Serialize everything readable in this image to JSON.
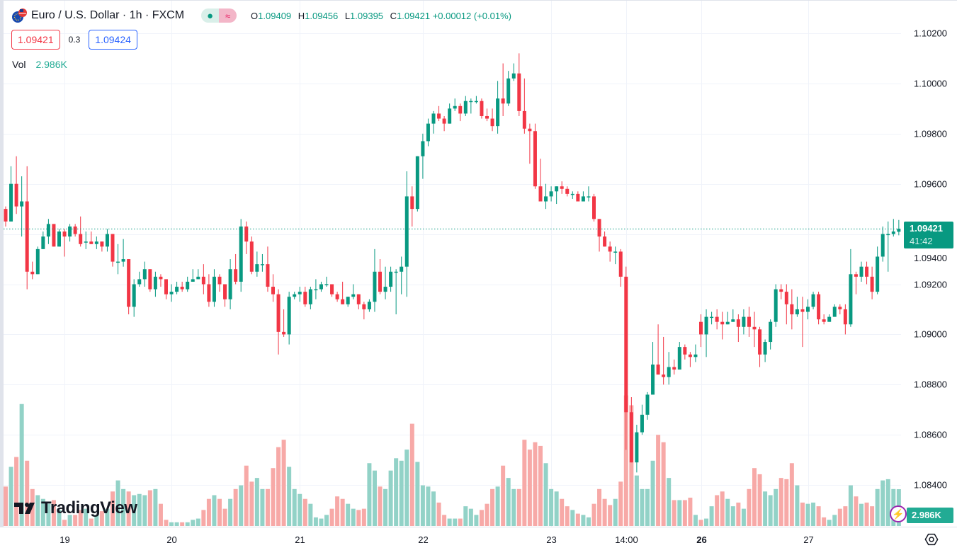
{
  "header": {
    "symbol_title": "Euro / U.S. Dollar · 1h · FXCM",
    "ohlc": {
      "o_label": "O",
      "o": "1.09409",
      "h_label": "H",
      "h": "1.09456",
      "l_label": "L",
      "l": "1.09395",
      "c_label": "C",
      "c": "1.09421",
      "change": "+0.00012 (+0.01%)"
    },
    "sell_price": "1.09421",
    "spread": "0.3",
    "buy_price": "1.09424",
    "vol_label": "Vol",
    "vol_value": "2.986K",
    "pill_dot": "●",
    "pill_wave": "≈"
  },
  "price_tag": {
    "price": "1.09421",
    "countdown": "41:42"
  },
  "volume_tag": "2.986K",
  "logo_text": "TradingView",
  "colors": {
    "up": "#089981",
    "down": "#f23645",
    "up_volume": "#92d2c7",
    "down_volume": "#f7a9a7",
    "grid": "#f0f3fa",
    "price_tag": "#089981",
    "volume_tag": "#22ab94"
  },
  "icons": {
    "flag": "eu-us-flag-icon",
    "bolt": "lightning-icon",
    "settings": "settings-hexagon-icon"
  },
  "chart_data": {
    "type": "candlestick",
    "title": "Euro / U.S. Dollar · 1h · FXCM",
    "ylim": [
      1.0836,
      1.1032
    ],
    "y_ticks": [
      "1.10200",
      "1.10000",
      "1.09800",
      "1.09600",
      "1.09400",
      "1.09200",
      "1.09000",
      "1.08800",
      "1.08600",
      "1.08400"
    ],
    "y_tick_values": [
      1.102,
      1.1,
      1.098,
      1.096,
      1.094,
      1.092,
      1.09,
      1.088,
      1.086,
      1.084
    ],
    "x_ticks": [
      {
        "label": "19",
        "candle_index": 11,
        "bold": false
      },
      {
        "label": "20",
        "candle_index": 31,
        "bold": false
      },
      {
        "label": "21",
        "candle_index": 55,
        "bold": false
      },
      {
        "label": "22",
        "candle_index": 78,
        "bold": false
      },
      {
        "label": "23",
        "candle_index": 102,
        "bold": false
      },
      {
        "label": "14:00",
        "candle_index": 116,
        "bold": false
      },
      {
        "label": "26",
        "candle_index": 130,
        "bold": true
      },
      {
        "label": "27",
        "candle_index": 150,
        "bold": false
      }
    ],
    "last_price": 1.09421,
    "volume_unit": "K",
    "candles_ohlc": [
      [
        1.095,
        1.0951,
        1.0943,
        1.0945
      ],
      [
        1.0945,
        1.0967,
        1.0945,
        1.096
      ],
      [
        1.096,
        1.0971,
        1.0948,
        1.0951
      ],
      [
        1.0951,
        1.0963,
        1.0939,
        1.0953
      ],
      [
        1.0953,
        1.0967,
        1.0918,
        1.0925
      ],
      [
        1.0925,
        1.0929,
        1.0922,
        1.0924
      ],
      [
        1.0924,
        1.0935,
        1.0924,
        1.0934
      ],
      [
        1.0934,
        1.0941,
        1.0934,
        1.0939
      ],
      [
        1.0939,
        1.0946,
        1.0936,
        1.0944
      ],
      [
        1.0944,
        1.0944,
        1.0935,
        1.0935
      ],
      [
        1.0935,
        1.0942,
        1.0935,
        1.0941
      ],
      [
        1.0941,
        1.0942,
        1.0931,
        1.0939
      ],
      [
        1.0939,
        1.0944,
        1.0937,
        1.0943
      ],
      [
        1.0943,
        1.0944,
        1.0939,
        1.094
      ],
      [
        1.094,
        1.0947,
        1.0935,
        1.0936
      ],
      [
        1.0937,
        1.0941,
        1.0934,
        1.0937
      ],
      [
        1.0937,
        1.0941,
        1.0936,
        1.0936
      ],
      [
        1.0936,
        1.0939,
        1.0934,
        1.0937
      ],
      [
        1.0937,
        1.0937,
        1.0933,
        1.0935
      ],
      [
        1.0935,
        1.0942,
        1.0933,
        1.094
      ],
      [
        1.094,
        1.094,
        1.0927,
        1.0929
      ],
      [
        1.0929,
        1.0936,
        1.0924,
        1.0929
      ],
      [
        1.0929,
        1.0938,
        1.0927,
        1.093
      ],
      [
        1.093,
        1.093,
        1.0908,
        1.0911
      ],
      [
        1.0911,
        1.0922,
        1.0907,
        1.092
      ],
      [
        1.092,
        1.0925,
        1.0919,
        1.0922
      ],
      [
        1.0922,
        1.0929,
        1.0919,
        1.0926
      ],
      [
        1.0926,
        1.0926,
        1.0917,
        1.0918
      ],
      [
        1.0918,
        1.0925,
        1.0915,
        1.0923
      ],
      [
        1.0923,
        1.0924,
        1.0919,
        1.0922
      ],
      [
        1.0922,
        1.0922,
        1.0914,
        1.0916
      ],
      [
        1.0916,
        1.092,
        1.0913,
        1.0917
      ],
      [
        1.0917,
        1.0921,
        1.0916,
        1.0919
      ],
      [
        1.0919,
        1.0921,
        1.0917,
        1.0918
      ],
      [
        1.0918,
        1.0923,
        1.0917,
        1.0921
      ],
      [
        1.0921,
        1.0926,
        1.0921,
        1.0922
      ],
      [
        1.0922,
        1.0926,
        1.0922,
        1.0923
      ],
      [
        1.0923,
        1.0928,
        1.0916,
        1.092
      ],
      [
        1.092,
        1.0924,
        1.0911,
        1.0913
      ],
      [
        1.0913,
        1.0926,
        1.0911,
        1.0923
      ],
      [
        1.0923,
        1.0924,
        1.0917,
        1.092
      ],
      [
        1.092,
        1.092,
        1.0911,
        1.0914
      ],
      [
        1.0914,
        1.093,
        1.091,
        1.0926
      ],
      [
        1.0926,
        1.0932,
        1.092,
        1.0921
      ],
      [
        1.0921,
        1.0946,
        1.0917,
        1.0943
      ],
      [
        1.0943,
        1.0945,
        1.0932,
        1.0937
      ],
      [
        1.0937,
        1.0939,
        1.0924,
        1.0925
      ],
      [
        1.0925,
        1.0933,
        1.0923,
        1.0928
      ],
      [
        1.0928,
        1.0932,
        1.0925,
        1.0928
      ],
      [
        1.0928,
        1.0935,
        1.0917,
        1.0919
      ],
      [
        1.0919,
        1.0924,
        1.0913,
        1.0916
      ],
      [
        1.0916,
        1.0918,
        1.0892,
        1.0901
      ],
      [
        1.0901,
        1.091,
        1.0899,
        1.09
      ],
      [
        1.09,
        1.0917,
        1.0896,
        1.0915
      ],
      [
        1.0915,
        1.0917,
        1.0914,
        1.0916
      ],
      [
        1.0916,
        1.0919,
        1.0913,
        1.0917
      ],
      [
        1.0917,
        1.0919,
        1.0911,
        1.0912
      ],
      [
        1.0912,
        1.0919,
        1.091,
        1.0918
      ],
      [
        1.0918,
        1.0922,
        1.0914,
        1.0918
      ],
      [
        1.0918,
        1.0921,
        1.0917,
        1.092
      ],
      [
        1.092,
        1.0923,
        1.0919,
        1.092
      ],
      [
        1.092,
        1.092,
        1.0915,
        1.0916
      ],
      [
        1.0916,
        1.0917,
        1.0913,
        1.0914
      ],
      [
        1.0914,
        1.0921,
        1.0912,
        1.0912
      ],
      [
        1.0912,
        1.0915,
        1.0911,
        1.0915
      ],
      [
        1.0915,
        1.092,
        1.0914,
        1.0916
      ],
      [
        1.0916,
        1.0916,
        1.091,
        1.0912
      ],
      [
        1.0912,
        1.0913,
        1.0906,
        1.091
      ],
      [
        1.091,
        1.0914,
        1.0909,
        1.0913
      ],
      [
        1.0913,
        1.0934,
        1.0909,
        1.0925
      ],
      [
        1.0925,
        1.093,
        1.0916,
        1.0917
      ],
      [
        1.0917,
        1.0927,
        1.0914,
        1.0919
      ],
      [
        1.0919,
        1.0927,
        1.0917,
        1.0925
      ],
      [
        1.0925,
        1.0926,
        1.0908,
        1.0925
      ],
      [
        1.0925,
        1.0931,
        1.0916,
        1.0927
      ],
      [
        1.0927,
        1.0965,
        1.0915,
        1.0955
      ],
      [
        1.0955,
        1.0959,
        1.0943,
        1.095
      ],
      [
        1.095,
        1.0971,
        1.0949,
        1.0971
      ],
      [
        1.0971,
        1.098,
        1.0962,
        1.0977
      ],
      [
        1.0977,
        1.0986,
        1.0975,
        1.0984
      ],
      [
        1.0984,
        1.0989,
        1.098,
        1.0988
      ],
      [
        1.0988,
        1.0991,
        1.0985,
        1.0986
      ],
      [
        1.0986,
        1.0987,
        1.0981,
        1.0984
      ],
      [
        1.0984,
        1.0992,
        1.0984,
        1.099
      ],
      [
        1.099,
        1.0994,
        1.0989,
        1.0991
      ],
      [
        1.0991,
        1.0992,
        1.0985,
        1.0988
      ],
      [
        1.0988,
        1.0995,
        1.0987,
        1.0993
      ],
      [
        1.0993,
        1.0994,
        1.0988,
        1.0993
      ],
      [
        1.0993,
        1.0995,
        1.0992,
        1.0993
      ],
      [
        1.0993,
        1.0994,
        1.0986,
        1.0987
      ],
      [
        1.0987,
        1.099,
        1.0985,
        1.0986
      ],
      [
        1.0986,
        1.099,
        1.0981,
        1.0983
      ],
      [
        1.0983,
        1.1001,
        1.098,
        1.0994
      ],
      [
        1.0994,
        1.1008,
        1.0987,
        1.0992
      ],
      [
        1.0992,
        1.1005,
        1.0991,
        1.1002
      ],
      [
        1.1002,
        1.1008,
        1.1001,
        1.1004
      ],
      [
        1.1004,
        1.1012,
        1.0987,
        1.0989
      ],
      [
        1.0989,
        1.1002,
        1.098,
        1.0982
      ],
      [
        1.0982,
        1.0984,
        1.0968,
        1.0981
      ],
      [
        1.0981,
        1.0984,
        1.0958,
        1.0959
      ],
      [
        1.0959,
        1.097,
        1.0953,
        1.0953
      ],
      [
        1.0953,
        1.096,
        1.095,
        1.0955
      ],
      [
        1.0955,
        1.0959,
        1.0953,
        1.0957
      ],
      [
        1.0957,
        1.0959,
        1.0952,
        1.0959
      ],
      [
        1.0959,
        1.0961,
        1.0956,
        1.0958
      ],
      [
        1.0958,
        1.0959,
        1.0955,
        1.0956
      ],
      [
        1.0956,
        1.0957,
        1.0954,
        1.0956
      ],
      [
        1.0956,
        1.0957,
        1.0953,
        1.0953
      ],
      [
        1.0953,
        1.0957,
        1.0953,
        1.0955
      ],
      [
        1.0955,
        1.0959,
        1.0953,
        1.0955
      ],
      [
        1.0955,
        1.0956,
        1.0945,
        1.0946
      ],
      [
        1.0946,
        1.0946,
        1.0933,
        1.0939
      ],
      [
        1.0939,
        1.0941,
        1.0935,
        1.0935
      ],
      [
        1.0935,
        1.0937,
        1.0929,
        1.0933
      ],
      [
        1.0933,
        1.0935,
        1.0928,
        1.0933
      ],
      [
        1.0933,
        1.0934,
        1.0919,
        1.0923
      ],
      [
        1.0923,
        1.0927,
        1.0854,
        1.0869
      ],
      [
        1.0869,
        1.0875,
        1.0849,
        1.0849
      ],
      [
        1.0849,
        1.0864,
        1.0845,
        1.0861
      ],
      [
        1.0861,
        1.0872,
        1.086,
        1.0868
      ],
      [
        1.0868,
        1.0877,
        1.0866,
        1.0876
      ],
      [
        1.0876,
        1.0897,
        1.0876,
        1.0888
      ],
      [
        1.0888,
        1.0904,
        1.0884,
        1.0884
      ],
      [
        1.0884,
        1.0899,
        1.088,
        1.0883
      ],
      [
        1.0883,
        1.0893,
        1.088,
        1.0887
      ],
      [
        1.0887,
        1.089,
        1.0884,
        1.0886
      ],
      [
        1.0886,
        1.0897,
        1.0886,
        1.0895
      ],
      [
        1.0895,
        1.0896,
        1.089,
        1.0892
      ],
      [
        1.0892,
        1.0893,
        1.0887,
        1.0891
      ],
      [
        1.0891,
        1.0896,
        1.0889,
        1.0892
      ],
      [
        1.0905,
        1.0908,
        1.0895,
        1.09
      ],
      [
        1.09,
        1.091,
        1.0891,
        1.0907
      ],
      [
        1.0907,
        1.0909,
        1.0904,
        1.0907
      ],
      [
        1.0907,
        1.091,
        1.0902,
        1.0905
      ],
      [
        1.0905,
        1.0909,
        1.0898,
        1.0904
      ],
      [
        1.0904,
        1.0909,
        1.0904,
        1.0905
      ],
      [
        1.0905,
        1.091,
        1.0905,
        1.0906
      ],
      [
        1.0906,
        1.0908,
        1.0897,
        1.0903
      ],
      [
        1.0903,
        1.091,
        1.09,
        1.0907
      ],
      [
        1.0907,
        1.0911,
        1.0899,
        1.0903
      ],
      [
        1.0903,
        1.0909,
        1.0895,
        1.0902
      ],
      [
        1.0902,
        1.0903,
        1.0887,
        1.0892
      ],
      [
        1.0892,
        1.0898,
        1.0889,
        1.0897
      ],
      [
        1.0897,
        1.0906,
        1.0894,
        1.0905
      ],
      [
        1.0905,
        1.092,
        1.0903,
        1.0918
      ],
      [
        1.0918,
        1.092,
        1.0914,
        1.0917
      ],
      [
        1.0917,
        1.092,
        1.0904,
        1.0912
      ],
      [
        1.0912,
        1.0918,
        1.0902,
        1.0908
      ],
      [
        1.0908,
        1.0915,
        1.0907,
        1.091
      ],
      [
        1.091,
        1.0915,
        1.0895,
        1.0909
      ],
      [
        1.0909,
        1.0914,
        1.0906,
        1.0911
      ],
      [
        1.0911,
        1.0917,
        1.091,
        1.0916
      ],
      [
        1.0916,
        1.0917,
        1.0904,
        1.0906
      ],
      [
        1.0906,
        1.0908,
        1.0904,
        1.0905
      ],
      [
        1.0905,
        1.0908,
        1.0905,
        1.0907
      ],
      [
        1.0907,
        1.0912,
        1.0907,
        1.0911
      ],
      [
        1.0911,
        1.0912,
        1.0908,
        1.091
      ],
      [
        1.091,
        1.0912,
        1.09,
        1.0904
      ],
      [
        1.0904,
        1.0934,
        1.0903,
        1.0924
      ],
      [
        1.0924,
        1.0925,
        1.0916,
        1.0923
      ],
      [
        1.0923,
        1.0929,
        1.0921,
        1.0927
      ],
      [
        1.0927,
        1.0929,
        1.092,
        1.0923
      ],
      [
        1.0923,
        1.0927,
        1.0914,
        1.0917
      ],
      [
        1.0917,
        1.0935,
        1.0916,
        1.0931
      ],
      [
        1.0931,
        1.0943,
        1.0929,
        1.094
      ],
      [
        1.094,
        1.0945,
        1.0925,
        1.094
      ],
      [
        1.094,
        1.0946,
        1.0939,
        1.0941
      ],
      [
        1.09409,
        1.09456,
        1.09395,
        1.09421
      ]
    ],
    "volumes": [
      3.2,
      4.8,
      5.6,
      9.9,
      5.3,
      3.0,
      2.5,
      2.2,
      1.8,
      2.1,
      1.3,
      0.5,
      0.9,
      0.9,
      1.3,
      1.4,
      0.6,
      0.9,
      1.2,
      1.4,
      2.8,
      3.7,
      3.0,
      2.8,
      2.5,
      2.6,
      2.5,
      2.9,
      3.0,
      1.8,
      0.5,
      0.3,
      0.3,
      0.3,
      0.3,
      0.5,
      0.6,
      1.3,
      2.2,
      2.5,
      2.2,
      1.4,
      2.2,
      3.0,
      3.3,
      4.9,
      3.6,
      3.9,
      3.0,
      3.0,
      4.7,
      6.4,
      7.0,
      4.8,
      3.0,
      2.6,
      2.2,
      1.8,
      0.7,
      0.6,
      0.9,
      1.4,
      2.4,
      2.2,
      1.8,
      1.4,
      1.3,
      1.4,
      5.1,
      4.5,
      3.2,
      3.0,
      4.5,
      5.5,
      5.3,
      6.2,
      8.3,
      5.2,
      3.3,
      3.2,
      2.8,
      1.9,
      0.9,
      0.6,
      0.6,
      0.6,
      1.6,
      1.4,
      0.9,
      1.3,
      1.8,
      3.0,
      3.2,
      4.9,
      3.9,
      3.0,
      3.0,
      7.0,
      6.2,
      6.8,
      6.5,
      5.1,
      3.0,
      2.8,
      2.2,
      1.6,
      1.3,
      1.0,
      0.9,
      0.7,
      1.8,
      3.0,
      2.2,
      1.7,
      2.2,
      3.6,
      10.6,
      9.8,
      4.1,
      3.0,
      3.0,
      5.3,
      7.4,
      6.8,
      3.9,
      2.1,
      2.1,
      2.1,
      2.3,
      0.9,
      0.5,
      0.6,
      1.6,
      2.5,
      2.8,
      2.2,
      1.6,
      1.9,
      1.4,
      3.0,
      4.7,
      4.2,
      2.8,
      2.5,
      3.0,
      3.9,
      3.8,
      5.1,
      3.3,
      1.9,
      1.8,
      1.9,
      1.6,
      0.7,
      0.5,
      0.9,
      1.4,
      1.6,
      3.3,
      2.4,
      1.8,
      1.9,
      1.6,
      3.0,
      3.7,
      3.8,
      3.0,
      2.986
    ]
  }
}
